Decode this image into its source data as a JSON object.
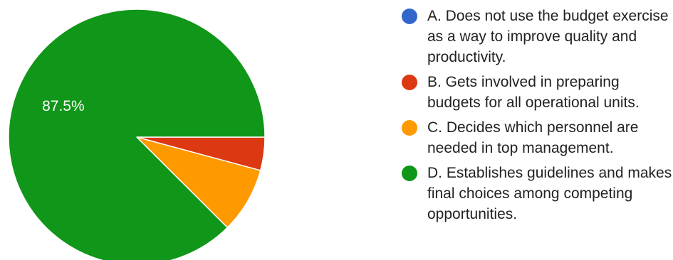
{
  "chart_data": {
    "type": "pie",
    "title": "",
    "slices": [
      {
        "label": "A. Does not use the budget exercise as a way to improve quality and productivity.",
        "value": 0.0,
        "color": "#3366cc"
      },
      {
        "label": "B. Gets involved in preparing budgets for all operational units.",
        "value": 4.2,
        "color": "#dc3912"
      },
      {
        "label": "C. Decides which personnel are needed in top management.",
        "value": 8.3,
        "color": "#ff9900"
      },
      {
        "label": "D. Establishes guidelines and makes final choices among competing opportunities.",
        "value": 87.5,
        "color": "#109618"
      }
    ],
    "data_labels": [
      {
        "slice": 3,
        "text": "87.5%"
      }
    ],
    "start_angle": "3 o'clock, clockwise",
    "legend_placement": "right"
  },
  "legend": {
    "items": [
      {
        "label": "A. Does not use the budget exercise as a way to improve quality and productivity.",
        "color": "#3366cc"
      },
      {
        "label": "B. Gets involved in preparing budgets for all operational units.",
        "color": "#dc3912"
      },
      {
        "label": "C. Decides which personnel are needed in top management.",
        "color": "#ff9900"
      },
      {
        "label": "D. Establishes guidelines and makes final choices among competing opportunities.",
        "color": "#109618"
      }
    ]
  }
}
